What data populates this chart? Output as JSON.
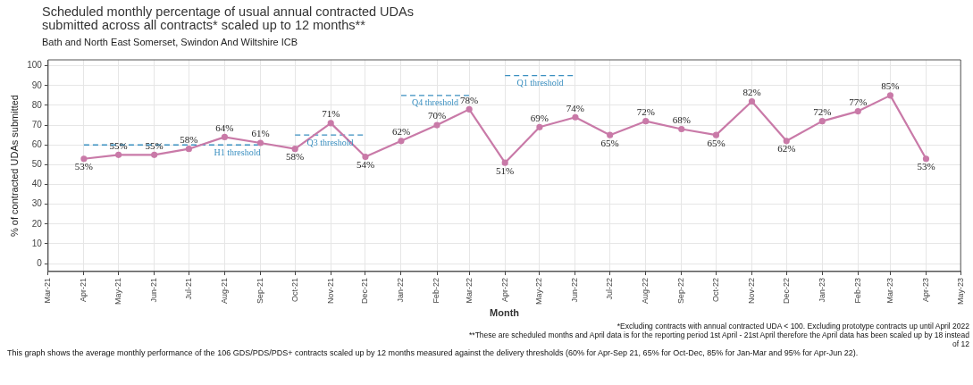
{
  "chart_data": {
    "type": "line",
    "title": "Scheduled monthly percentage of usual annual contracted UDAs\nsubmitted across all contracts* scaled up to 12 months**",
    "subtitle": "Bath and North East Somerset, Swindon And Wiltshire ICB",
    "xlabel": "Month",
    "ylabel": "% of contracted UDAs submitted",
    "x": [
      "2021-04",
      "2021-05",
      "2021-06",
      "2021-07",
      "2021-08",
      "2021-09",
      "2021-10",
      "2021-11",
      "2021-12",
      "2022-01",
      "2022-02",
      "2022-03",
      "2022-04",
      "2022-05",
      "2022-06",
      "2022-07",
      "2022-08",
      "2022-09",
      "2022-10",
      "2022-11",
      "2022-12",
      "2023-01",
      "2023-02",
      "2023-03",
      "2023-04"
    ],
    "series": [
      {
        "color": "#c97aa8",
        "marker": "circle",
        "values": [
          53,
          55,
          55,
          58,
          64,
          61,
          58,
          71,
          54,
          62,
          70,
          78,
          51,
          69,
          74,
          65,
          72,
          68,
          65,
          82,
          62,
          72,
          77,
          85,
          53
        ],
        "value_labels": [
          "53%",
          "55%",
          "55%",
          "58%",
          "64%",
          "61%",
          "58%",
          "71%",
          "54%",
          "62%",
          "70%",
          "78%",
          "51%",
          "69%",
          "74%",
          "65%",
          "72%",
          "68%",
          "65%",
          "82%",
          "62%",
          "72%",
          "77%",
          "85%",
          "53%"
        ]
      },
      {
        "type": "line",
        "name": "H1 threshold",
        "color": "#3a8fc0",
        "line_style": "dashed",
        "marker": "none",
        "x": [
          "2021-04",
          "2021-09"
        ],
        "values": [
          60,
          60
        ]
      },
      {
        "type": "line",
        "name": "Q3 threshold",
        "color": "#3a8fc0",
        "line_style": "dashed",
        "marker": "none",
        "x": [
          "2021-10",
          "2021-12"
        ],
        "values": [
          65,
          65
        ]
      },
      {
        "type": "line",
        "name": "Q4 threshold",
        "color": "#3a8fc0",
        "line_style": "dashed",
        "marker": "none",
        "x": [
          "2022-01",
          "2022-03"
        ],
        "values": [
          85,
          85
        ]
      },
      {
        "type": "line",
        "name": "Q1 threshold",
        "color": "#3a8fc0",
        "line_style": "dashed",
        "marker": "none",
        "x": [
          "2022-04",
          "2022-06"
        ],
        "values": [
          95,
          95
        ]
      }
    ],
    "xlim": [
      "2021-03",
      "2023-05"
    ],
    "xticks": [
      {
        "value": "2021-03",
        "label": "Mar-21"
      },
      {
        "value": "2021-04",
        "label": "Apr-21"
      },
      {
        "value": "2021-05",
        "label": "May-21"
      },
      {
        "value": "2021-06",
        "label": "Jun-21"
      },
      {
        "value": "2021-07",
        "label": "Jul-21"
      },
      {
        "value": "2021-08",
        "label": "Aug-21"
      },
      {
        "value": "2021-09",
        "label": "Sep-21"
      },
      {
        "value": "2021-10",
        "label": "Oct-21"
      },
      {
        "value": "2021-11",
        "label": "Nov-21"
      },
      {
        "value": "2021-12",
        "label": "Dec-21"
      },
      {
        "value": "2022-01",
        "label": "Jan-22"
      },
      {
        "value": "2022-02",
        "label": "Feb-22"
      },
      {
        "value": "2022-03",
        "label": "Mar-22"
      },
      {
        "value": "2022-04",
        "label": "Apr-22"
      },
      {
        "value": "2022-05",
        "label": "May-22"
      },
      {
        "value": "2022-06",
        "label": "Jun-22"
      },
      {
        "value": "2022-07",
        "label": "Jul-22"
      },
      {
        "value": "2022-08",
        "label": "Aug-22"
      },
      {
        "value": "2022-09",
        "label": "Sep-22"
      },
      {
        "value": "2022-10",
        "label": "Oct-22"
      },
      {
        "value": "2022-11",
        "label": "Nov-22"
      },
      {
        "value": "2022-12",
        "label": "Dec-22"
      },
      {
        "value": "2023-01",
        "label": "Jan-23"
      },
      {
        "value": "2023-02",
        "label": "Feb-23"
      },
      {
        "value": "2023-03",
        "label": "Mar-23"
      },
      {
        "value": "2023-04",
        "label": "Apr-23"
      },
      {
        "value": "2023-05",
        "label": "May-23"
      }
    ],
    "ylim": [
      -4,
      103
    ],
    "yticks": [
      0,
      10,
      20,
      30,
      40,
      50,
      60,
      70,
      80,
      90,
      100
    ],
    "grid": true,
    "legend": false,
    "annotations": [
      "*Excluding contracts with annual contracted UDA < 100. Excluding prototype contracts up until April 2022",
      "**These are scheduled months and April data is for the reporting period 1st April - 21st April therefore the April data has been scaled up by 18 instead of 12",
      "This graph shows the average monthly performance of the 106 GDS/PDS/PDS+ contracts scaled up by 12 months measured against the delivery thresholds (60% for Apr-Sep 21, 65% for Oct-Dec, 85% for Jan-Mar and 95% for Apr-Jun 22)."
    ]
  }
}
